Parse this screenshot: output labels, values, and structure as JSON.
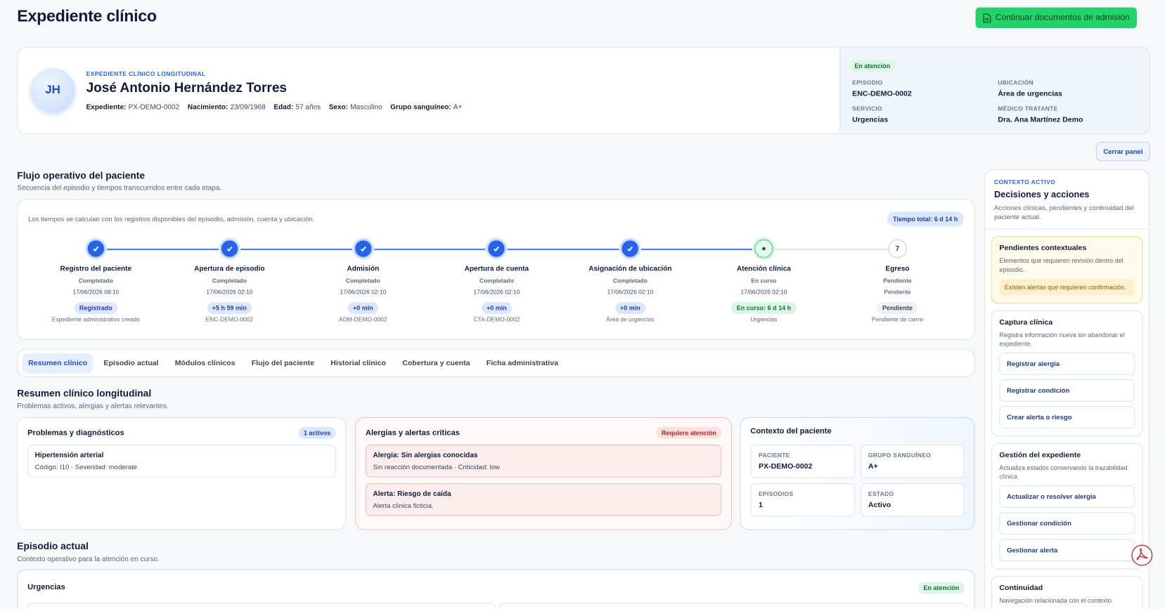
{
  "header": {
    "title": "Expediente clínico",
    "action": "Continuar documentos de admisión"
  },
  "patient": {
    "kicker": "EXPEDIENTE CLÍNICO LONGITUDINAL",
    "initials": "JH",
    "name": "José Antonio Hernández Torres",
    "facts": [
      {
        "label": "Expediente:",
        "value": "PX-DEMO-0002"
      },
      {
        "label": "Nacimiento:",
        "value": "23/09/1968"
      },
      {
        "label": "Edad:",
        "value": "57 años"
      },
      {
        "label": "Sexo:",
        "value": "Masculino"
      },
      {
        "label": "Grupo sanguíneo:",
        "value": "A+"
      }
    ]
  },
  "episode": {
    "status": "En atención",
    "fields": [
      {
        "label": "EPISODIO",
        "value": "ENC-DEMO-0002"
      },
      {
        "label": "UBICACIÓN",
        "value": "Área de urgencias"
      },
      {
        "label": "SERVICIO",
        "value": "Urgencias"
      },
      {
        "label": "MÉDICO TRATANTE",
        "value": "Dra. Ana Martínez Demo"
      }
    ]
  },
  "close_panel": "Cerrar panel",
  "flow": {
    "title": "Flujo operativo del paciente",
    "subtitle": "Secuencia del episodio y tiempos transcurridos entre cada etapa.",
    "note": "Los tiempos se calculan con los registros disponibles del episodio, admisión, cuenta y ubicación.",
    "total": "Tiempo total: 6 d 14 h",
    "steps": [
      {
        "name": "Registro del paciente",
        "state": "Completado",
        "date": "17/06/2026 08:10",
        "badge": "Registrado",
        "ref": "Expediente administrativo creado"
      },
      {
        "name": "Apertura de episodio",
        "state": "Completado",
        "date": "17/06/2026 02:10",
        "badge": "+5 h 59 min",
        "ref": "ENC-DEMO-0002"
      },
      {
        "name": "Admisión",
        "state": "Completado",
        "date": "17/06/2026 02:10",
        "badge": "+0 min",
        "ref": "ADM-DEMO-0002"
      },
      {
        "name": "Apertura de cuenta",
        "state": "Completado",
        "date": "17/06/2026 02:10",
        "badge": "+0 min",
        "ref": "CTA-DEMO-0002"
      },
      {
        "name": "Asignación de ubicación",
        "state": "Completado",
        "date": "17/06/2026 02:10",
        "badge": "+0 min",
        "ref": "Área de urgencias"
      },
      {
        "name": "Atención clínica",
        "state": "En curso",
        "date": "17/06/2026 02:10",
        "badge": "En curso: 6 d 14 h",
        "ref": "Urgencias"
      },
      {
        "marker": "7",
        "name": "Egreso",
        "state": "Pendiente",
        "date": "Pendiente",
        "badge": "Pendiente",
        "ref": "Pendiente de cierre"
      }
    ]
  },
  "tabs": [
    "Resumen clínico",
    "Episodio actual",
    "Módulos clínicos",
    "Flujo del paciente",
    "Historial clínico",
    "Cobertura y cuenta",
    "Ficha administrativa"
  ],
  "summary": {
    "title": "Resumen clínico longitudinal",
    "subtitle": "Problemas activos, alergias y alertas relevantes.",
    "problems": {
      "title": "Problemas y diagnósticos",
      "badge": "1 activos",
      "items": [
        {
          "title": "Hipertensión arterial",
          "detail": "Código: I10 · Severidad: moderate"
        }
      ]
    },
    "allergies": {
      "title": "Alergias y alertas críticas",
      "badge": "Requiere atención",
      "items": [
        {
          "title": "Alergia: Sin alergias conocidas",
          "detail": "Sin reacción documentada · Criticidad: low"
        },
        {
          "title": "Alerta: Riesgo de caída",
          "detail": "Alerta clínica ficticia."
        }
      ]
    },
    "context": {
      "title": "Contexto del paciente",
      "fields": [
        {
          "label": "PACIENTE",
          "value": "PX-DEMO-0002"
        },
        {
          "label": "GRUPO SANGUÍNEO",
          "value": "A+"
        },
        {
          "label": "EPISODIOS",
          "value": "1"
        },
        {
          "label": "ESTADO",
          "value": "Activo"
        }
      ]
    }
  },
  "current_episode": {
    "title": "Episodio actual",
    "subtitle": "Contexto operativo para la atención en curso.",
    "card_title": "Urgencias",
    "status": "En atención"
  },
  "sidebar": {
    "kicker": "CONTEXTO ACTIVO",
    "title": "Decisiones y acciones",
    "description": "Acciones clínicas, pendientes y continuidad del paciente actual.",
    "pending": {
      "title": "Pendientes contextuales",
      "description": "Elementos que requieren revisión dentro del episodio.",
      "alert": "Existen alertas que requieren confirmación."
    },
    "capture": {
      "title": "Captura clínica",
      "description": "Registra información nueva sin abandonar el expediente.",
      "actions": [
        "Registrar alergia",
        "Registrar condición",
        "Crear alerta o riesgo"
      ]
    },
    "management": {
      "title": "Gestión del expediente",
      "description": "Actualiza estados conservando la trazabilidad clínica.",
      "actions": [
        "Actualizar o resolver alergia",
        "Gestionar condición",
        "Gestionar alerta"
      ]
    },
    "continuity": {
      "title": "Continuidad",
      "description": "Navegación relacionada con el contexto"
    }
  }
}
